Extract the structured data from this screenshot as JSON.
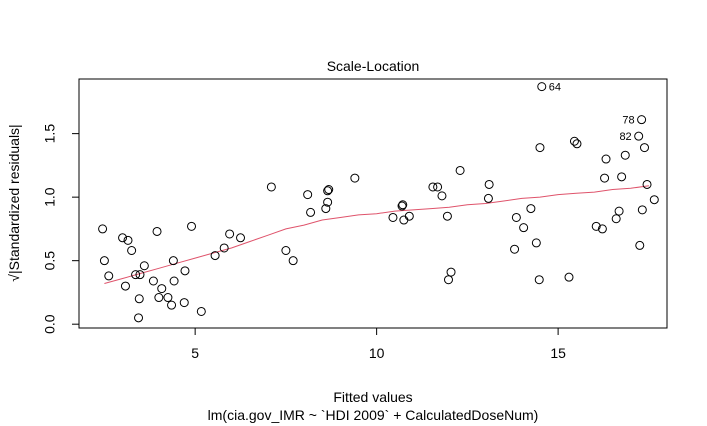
{
  "chart_data": {
    "type": "scatter",
    "title": "Scale-Location",
    "xlabel": "Fitted values",
    "xsub": "lm(cia.gov_IMR ~ `HDI 2009` + CalculatedDoseNum)",
    "ylabel": "√|Standardized residuals|",
    "ylabel_root": "√",
    "ylabel_text": "Standardized residuals",
    "xlim": [
      1.8,
      18.0
    ],
    "ylim": [
      -0.03,
      1.93
    ],
    "xticks": [
      5,
      10,
      15
    ],
    "xtick_labels": [
      "5",
      "10",
      "15"
    ],
    "yticks": [
      0.0,
      0.5,
      1.0,
      1.5
    ],
    "ytick_labels": [
      "0.0",
      "0.5",
      "1.0",
      "1.5"
    ],
    "grid": false,
    "point_color": "#000000",
    "smooth_color": "#DF536B",
    "points": [
      {
        "x": 2.45,
        "y": 0.75
      },
      {
        "x": 2.5,
        "y": 0.5
      },
      {
        "x": 2.62,
        "y": 0.38
      },
      {
        "x": 3.0,
        "y": 0.68
      },
      {
        "x": 3.08,
        "y": 0.3
      },
      {
        "x": 3.15,
        "y": 0.66
      },
      {
        "x": 3.25,
        "y": 0.58
      },
      {
        "x": 3.36,
        "y": 0.39
      },
      {
        "x": 3.44,
        "y": 0.05
      },
      {
        "x": 3.46,
        "y": 0.2
      },
      {
        "x": 3.48,
        "y": 0.39
      },
      {
        "x": 3.6,
        "y": 0.46
      },
      {
        "x": 3.85,
        "y": 0.34
      },
      {
        "x": 3.95,
        "y": 0.73
      },
      {
        "x": 4.0,
        "y": 0.21
      },
      {
        "x": 4.08,
        "y": 0.28
      },
      {
        "x": 4.25,
        "y": 0.21
      },
      {
        "x": 4.35,
        "y": 0.15
      },
      {
        "x": 4.4,
        "y": 0.5
      },
      {
        "x": 4.42,
        "y": 0.34
      },
      {
        "x": 4.7,
        "y": 0.17
      },
      {
        "x": 4.72,
        "y": 0.42
      },
      {
        "x": 4.9,
        "y": 0.77
      },
      {
        "x": 5.17,
        "y": 0.1
      },
      {
        "x": 5.55,
        "y": 0.54
      },
      {
        "x": 5.8,
        "y": 0.6
      },
      {
        "x": 5.95,
        "y": 0.71
      },
      {
        "x": 6.25,
        "y": 0.68
      },
      {
        "x": 7.1,
        "y": 1.08
      },
      {
        "x": 7.5,
        "y": 0.58
      },
      {
        "x": 7.7,
        "y": 0.5
      },
      {
        "x": 8.1,
        "y": 1.02
      },
      {
        "x": 8.18,
        "y": 0.88
      },
      {
        "x": 8.6,
        "y": 0.91
      },
      {
        "x": 8.65,
        "y": 0.96
      },
      {
        "x": 8.65,
        "y": 1.05
      },
      {
        "x": 8.68,
        "y": 1.06
      },
      {
        "x": 9.4,
        "y": 1.15
      },
      {
        "x": 10.45,
        "y": 0.84
      },
      {
        "x": 10.7,
        "y": 0.93
      },
      {
        "x": 10.72,
        "y": 0.94
      },
      {
        "x": 10.75,
        "y": 0.82
      },
      {
        "x": 10.9,
        "y": 0.85
      },
      {
        "x": 11.55,
        "y": 1.08
      },
      {
        "x": 11.68,
        "y": 1.08
      },
      {
        "x": 11.8,
        "y": 1.01
      },
      {
        "x": 11.95,
        "y": 0.85
      },
      {
        "x": 11.98,
        "y": 0.35
      },
      {
        "x": 12.05,
        "y": 0.41
      },
      {
        "x": 12.3,
        "y": 1.21
      },
      {
        "x": 13.08,
        "y": 0.99
      },
      {
        "x": 13.1,
        "y": 1.1
      },
      {
        "x": 13.8,
        "y": 0.59
      },
      {
        "x": 13.85,
        "y": 0.84
      },
      {
        "x": 14.05,
        "y": 0.76
      },
      {
        "x": 14.25,
        "y": 0.91
      },
      {
        "x": 14.4,
        "y": 0.64
      },
      {
        "x": 14.48,
        "y": 0.35
      },
      {
        "x": 14.5,
        "y": 1.39
      },
      {
        "x": 14.55,
        "y": 1.87,
        "label": "64"
      },
      {
        "x": 15.3,
        "y": 0.37
      },
      {
        "x": 15.45,
        "y": 1.44
      },
      {
        "x": 15.52,
        "y": 1.42
      },
      {
        "x": 16.05,
        "y": 0.77
      },
      {
        "x": 16.22,
        "y": 0.75
      },
      {
        "x": 16.28,
        "y": 1.15
      },
      {
        "x": 16.32,
        "y": 1.3
      },
      {
        "x": 16.6,
        "y": 0.83
      },
      {
        "x": 16.68,
        "y": 0.89
      },
      {
        "x": 16.75,
        "y": 1.16
      },
      {
        "x": 16.85,
        "y": 1.33
      },
      {
        "x": 17.22,
        "y": 1.48,
        "label": "82"
      },
      {
        "x": 17.25,
        "y": 0.62
      },
      {
        "x": 17.3,
        "y": 1.61,
        "label": "78"
      },
      {
        "x": 17.32,
        "y": 0.9
      },
      {
        "x": 17.38,
        "y": 1.39
      },
      {
        "x": 17.45,
        "y": 1.1
      },
      {
        "x": 17.65,
        "y": 0.98
      }
    ],
    "smooth": {
      "name": "",
      "x": [
        2.5,
        3.0,
        3.5,
        4.0,
        4.5,
        5.0,
        5.5,
        6.0,
        6.5,
        7.0,
        7.5,
        8.0,
        8.5,
        9.0,
        9.5,
        10.0,
        10.5,
        11.0,
        11.5,
        12.0,
        12.5,
        13.0,
        13.5,
        14.0,
        14.5,
        15.0,
        15.5,
        16.0,
        16.5,
        17.0,
        17.5
      ],
      "y": [
        0.32,
        0.36,
        0.4,
        0.44,
        0.48,
        0.52,
        0.56,
        0.6,
        0.65,
        0.7,
        0.75,
        0.78,
        0.82,
        0.84,
        0.86,
        0.87,
        0.89,
        0.9,
        0.91,
        0.92,
        0.94,
        0.95,
        0.97,
        0.99,
        1.0,
        1.02,
        1.03,
        1.04,
        1.06,
        1.07,
        1.09
      ]
    }
  }
}
